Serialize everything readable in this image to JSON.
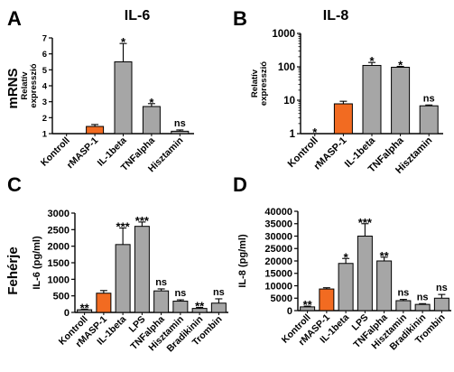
{
  "colors": {
    "gray_bar": "#a6a6a6",
    "orange_bar": "#f26b21",
    "stroke": "#000000"
  },
  "figure": {
    "panel_letters": [
      "A",
      "B",
      "C",
      "D"
    ],
    "titles": {
      "il6": "IL-6",
      "il8": "IL-8"
    },
    "row_labels": {
      "top": "mRNS",
      "bottom": "Fehérje"
    }
  },
  "chart_data": [
    {
      "id": "A",
      "type": "bar",
      "ylabel": "Relatív expresszió",
      "ylabel_lines": [
        "Relatív",
        "expresszió"
      ],
      "ylim": [
        1,
        7
      ],
      "yticks": [
        1,
        2,
        3,
        4,
        5,
        6,
        7
      ],
      "categories": [
        "Kontroll",
        "rMASP-1",
        "IL-1beta",
        "TNFalpha",
        "Hisztamin"
      ],
      "values": [
        1.0,
        1.45,
        5.5,
        2.7,
        1.15
      ],
      "errors": [
        0.0,
        0.12,
        1.15,
        0.18,
        0.08
      ],
      "colors": [
        "gray",
        "orange",
        "gray",
        "gray",
        "gray"
      ],
      "annotations": [
        "",
        "",
        "*",
        "*",
        "ns"
      ]
    },
    {
      "id": "B",
      "type": "bar",
      "yscale": "log",
      "ylabel": "Relatív expresszió",
      "ylabel_lines": [
        "Relatív",
        "expresszió"
      ],
      "ylim": [
        1,
        1000
      ],
      "yticks": [
        1,
        10,
        100,
        1000
      ],
      "categories": [
        "Kontroll",
        "rMASP-1",
        "IL-1beta",
        "TNFalpha",
        "Hisztamin"
      ],
      "values": [
        1.0,
        7.8,
        110,
        97,
        6.8
      ],
      "errors": [
        0,
        1.5,
        25,
        6,
        0.4
      ],
      "colors": [
        "gray",
        "orange",
        "gray",
        "gray",
        "gray"
      ],
      "annotations": [
        "*",
        "",
        "*",
        "*",
        "ns"
      ]
    },
    {
      "id": "C",
      "type": "bar",
      "ylabel": "IL-6 (pg/ml)",
      "ylim": [
        0,
        3000
      ],
      "yticks": [
        0,
        500,
        1000,
        1500,
        2000,
        2500,
        3000
      ],
      "categories": [
        "Kontroll",
        "rMASP-1",
        "IL-1beta",
        "LPS",
        "TNFalpha",
        "Hisztamin",
        "Bradikinin",
        "Trombin"
      ],
      "values": [
        80,
        580,
        2050,
        2600,
        650,
        340,
        120,
        280
      ],
      "errors": [
        20,
        80,
        500,
        130,
        60,
        40,
        30,
        130
      ],
      "colors": [
        "gray",
        "orange",
        "gray",
        "gray",
        "gray",
        "gray",
        "gray",
        "gray"
      ],
      "annotations": [
        "**",
        "",
        "***",
        "***",
        "ns",
        "ns",
        "**",
        "ns"
      ]
    },
    {
      "id": "D",
      "type": "bar",
      "ylabel": "IL-8 (pg/ml)",
      "ylim": [
        0,
        40000
      ],
      "yticks": [
        0,
        5000,
        10000,
        15000,
        20000,
        25000,
        30000,
        35000,
        40000
      ],
      "categories": [
        "Kontroll",
        "rMASP-1",
        "IL-1beta",
        "LPS",
        "TNFalpha",
        "Hisztamin",
        "Bradikinin",
        "Trombin"
      ],
      "values": [
        1500,
        8700,
        19000,
        30000,
        20000,
        4000,
        2500,
        5000
      ],
      "errors": [
        300,
        500,
        2000,
        5000,
        1500,
        500,
        300,
        1500
      ],
      "colors": [
        "gray",
        "orange",
        "gray",
        "gray",
        "gray",
        "gray",
        "gray",
        "gray"
      ],
      "annotations": [
        "**",
        "",
        "*",
        "***",
        "**",
        "ns",
        "ns",
        "ns"
      ]
    }
  ]
}
